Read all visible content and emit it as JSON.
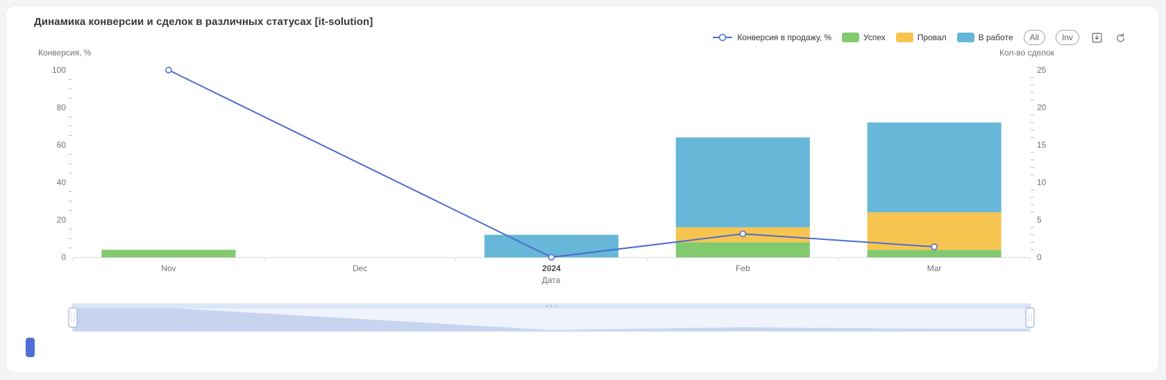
{
  "title": "Динамика конверсии и сделок в различных статусах [it-solution]",
  "toolbar": {
    "all_label": "All",
    "inv_label": "Inv",
    "icons": [
      "save-image-icon",
      "restore-icon"
    ]
  },
  "ui": {
    "accent_color": "#4f6fd6",
    "card_background": "#ffffff",
    "page_background": "#f3f4f6",
    "axis_text_color": "#6E7079"
  },
  "chart_data": {
    "type": "combo-line-stacked-bar",
    "categories": [
      "Nov",
      "Dec",
      "2024",
      "Feb",
      "Mar"
    ],
    "x_axis": {
      "name": "Дата",
      "bold_label": "2024"
    },
    "left_axis": {
      "name": "Конверсия, %",
      "min": 0,
      "max": 100,
      "ticks": [
        0,
        20,
        40,
        60,
        80,
        100
      ]
    },
    "right_axis": {
      "name": "Кол-во сделок",
      "min": 0,
      "max": 25,
      "ticks": [
        0,
        5,
        10,
        15,
        20,
        25
      ]
    },
    "line_series": {
      "name": "Конверсия в продажу, %",
      "color": "#4a6bd2",
      "axis": "left",
      "values": [
        100,
        null,
        0,
        12.5,
        5.6
      ]
    },
    "bar_series": [
      {
        "name": "Успех",
        "color": "#83c96e",
        "values": [
          1,
          0,
          0,
          2,
          1
        ]
      },
      {
        "name": "Провал",
        "color": "#f7c44f",
        "values": [
          0,
          0,
          0,
          2,
          5
        ]
      },
      {
        "name": "В работе",
        "color": "#66b7d8",
        "values": [
          0,
          0,
          3,
          12,
          12
        ]
      }
    ],
    "legend_position": "top-right",
    "grid": false,
    "datazoom": {
      "start_pct": 0,
      "end_pct": 100
    }
  }
}
